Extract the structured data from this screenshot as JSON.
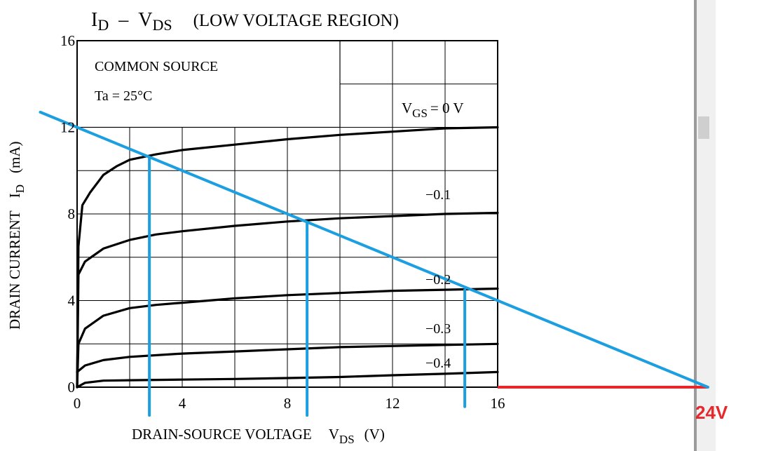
{
  "chart_data": {
    "type": "line",
    "title_main": "I",
    "title_main_sub": "D",
    "title_sep": "–",
    "title_v": "V",
    "title_v_sub": "DS",
    "title_region": "(LOW VOLTAGE REGION)",
    "xlabel_main": "DRAIN-SOURCE VOLTAGE",
    "xlabel_symbol": "V",
    "xlabel_symbol_sub": "DS",
    "xlabel_unit": "(V)",
    "ylabel_main": "DRAIN CURRENT",
    "ylabel_symbol": "I",
    "ylabel_symbol_sub": "D",
    "ylabel_unit": "(mA)",
    "xlim": [
      0,
      16
    ],
    "ylim": [
      0,
      16
    ],
    "x_ticks": [
      0,
      4,
      8,
      12,
      16
    ],
    "y_ticks": [
      0,
      4,
      8,
      12,
      16
    ],
    "grid": true,
    "annotations": {
      "common_source": "COMMON SOURCE",
      "ta": "Ta = 25°C",
      "vgs_prefix": "V",
      "vgs_sub": "GS",
      "vgs_suffix": "= 0 V"
    },
    "series": [
      {
        "name": "V_GS = 0 V",
        "label": "",
        "x": [
          0,
          0.05,
          0.2,
          0.5,
          1,
          1.5,
          2,
          3,
          4,
          6,
          8,
          10,
          12,
          14,
          16
        ],
        "y": [
          0,
          6.5,
          8.4,
          9.0,
          9.8,
          10.2,
          10.5,
          10.75,
          10.95,
          11.2,
          11.45,
          11.65,
          11.8,
          11.95,
          12.0
        ]
      },
      {
        "name": "V_GS = -0.1 V",
        "label": "−0.1",
        "x": [
          0,
          0.05,
          0.3,
          1,
          2,
          3,
          4,
          6,
          8,
          10,
          12,
          14,
          16
        ],
        "y": [
          0,
          5.2,
          5.8,
          6.4,
          6.8,
          7.05,
          7.2,
          7.45,
          7.65,
          7.8,
          7.9,
          8.0,
          8.05
        ]
      },
      {
        "name": "V_GS = -0.2 V",
        "label": "−0.2",
        "x": [
          0,
          0.05,
          0.3,
          1,
          2,
          3,
          4,
          6,
          8,
          10,
          12,
          14,
          16
        ],
        "y": [
          0,
          2.0,
          2.7,
          3.3,
          3.65,
          3.8,
          3.9,
          4.1,
          4.25,
          4.35,
          4.45,
          4.5,
          4.55
        ]
      },
      {
        "name": "V_GS = -0.3 V",
        "label": "−0.3",
        "x": [
          0,
          0.3,
          1,
          2,
          4,
          6,
          8,
          10,
          12,
          14,
          16
        ],
        "y": [
          0.7,
          1.0,
          1.25,
          1.4,
          1.55,
          1.65,
          1.75,
          1.85,
          1.9,
          1.95,
          2.0
        ]
      },
      {
        "name": "V_GS = -0.4 V",
        "label": "−0.4",
        "x": [
          0,
          0.3,
          1,
          2,
          4,
          6,
          8,
          10,
          12,
          14,
          16
        ],
        "y": [
          0,
          0.2,
          0.3,
          0.32,
          0.35,
          0.38,
          0.42,
          0.47,
          0.55,
          0.62,
          0.7
        ]
      }
    ],
    "load_line": {
      "x": [
        -1.4,
        24
      ],
      "y": [
        12.7,
        0
      ],
      "color": "#1b9fe0"
    },
    "operating_drops": [
      {
        "x": 2.75,
        "y_top": 10.6,
        "y_bottom": -1.3
      },
      {
        "x": 8.75,
        "y_top": 7.6,
        "y_bottom": -1.3
      },
      {
        "x": 14.75,
        "y_top": 4.5,
        "y_bottom": -0.9
      }
    ],
    "extension_line": {
      "x": [
        16,
        24
      ],
      "y": 0,
      "color": "#e8272a"
    },
    "extension_label": "24V"
  }
}
